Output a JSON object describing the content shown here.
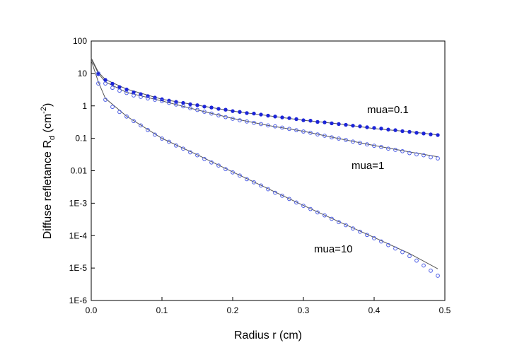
{
  "chart_data": {
    "type": "scatter",
    "xlabel": "Radius r (cm)",
    "ylabel": {
      "text": "Diffuse refletance R",
      "sub": "d",
      "unit_open": " (cm",
      "sup": "-2",
      "unit_close": ")"
    },
    "log_y": true,
    "xlim": [
      0,
      0.5
    ],
    "ylim": [
      1e-06,
      100
    ],
    "xticks": [
      {
        "value": 0,
        "label": "0.0"
      },
      0.1,
      0.2,
      0.3,
      0.4,
      0.5
    ],
    "yticks": [
      {
        "value": 1e-06,
        "label": "1E-6"
      },
      {
        "value": 1e-05,
        "label": "1E-5"
      },
      {
        "value": 0.0001,
        "label": "1E-4"
      },
      {
        "value": 0.001,
        "label": "1E-3"
      },
      0.01,
      0.1,
      1,
      10,
      100
    ],
    "annotations": [
      "mua=0.1",
      "mua=1",
      "mua=10"
    ],
    "x": [
      0.01,
      0.02,
      0.03,
      0.04,
      0.05,
      0.06,
      0.07,
      0.08,
      0.09,
      0.1,
      0.11,
      0.12,
      0.13,
      0.14,
      0.15,
      0.16,
      0.17,
      0.18,
      0.19,
      0.2,
      0.21,
      0.22,
      0.23,
      0.24,
      0.25,
      0.26,
      0.27,
      0.28,
      0.29,
      0.3,
      0.31,
      0.32,
      0.33,
      0.34,
      0.35,
      0.36,
      0.37,
      0.38,
      0.39,
      0.4,
      0.41,
      0.42,
      0.43,
      0.44,
      0.45,
      0.46,
      0.47,
      0.48,
      0.49
    ],
    "series": [
      {
        "style": "filled",
        "color": "#1c24d8",
        "values": [
          9.5,
          6.3,
          4.8,
          3.8,
          3.2,
          2.6,
          2.3,
          2.0,
          1.8,
          1.6,
          1.45,
          1.32,
          1.23,
          1.12,
          1.05,
          0.95,
          0.89,
          0.81,
          0.76,
          0.69,
          0.65,
          0.6,
          0.58,
          0.54,
          0.5,
          0.47,
          0.44,
          0.42,
          0.39,
          0.36,
          0.35,
          0.32,
          0.31,
          0.29,
          0.275,
          0.26,
          0.245,
          0.234,
          0.219,
          0.209,
          0.2,
          0.186,
          0.178,
          0.166,
          0.158,
          0.148,
          0.141,
          0.132,
          0.126
        ]
      },
      {
        "style": "open",
        "color": "#4d5ee6",
        "values": [
          10,
          4.9,
          3.6,
          2.95,
          2.5,
          2.1,
          1.9,
          1.7,
          1.55,
          1.41,
          1.24,
          1.1,
          0.97,
          0.85,
          0.75,
          0.66,
          0.58,
          0.51,
          0.45,
          0.4,
          0.36,
          0.33,
          0.3,
          0.275,
          0.25,
          0.234,
          0.214,
          0.195,
          0.178,
          0.162,
          0.148,
          0.132,
          0.12,
          0.107,
          0.098,
          0.089,
          0.079,
          0.072,
          0.065,
          0.059,
          0.054,
          0.048,
          0.044,
          0.04,
          0.035,
          0.032,
          0.03,
          0.026,
          0.024
        ]
      },
      {
        "style": "open",
        "color": "#4d5ee6",
        "values": [
          4.9,
          1.55,
          0.93,
          0.65,
          0.47,
          0.34,
          0.25,
          0.18,
          0.13,
          0.098,
          0.078,
          0.06,
          0.048,
          0.037,
          0.03,
          0.023,
          0.018,
          0.0145,
          0.0112,
          0.0089,
          0.0071,
          0.0055,
          0.0044,
          0.0035,
          0.0027,
          0.0021,
          0.0017,
          0.00135,
          0.00105,
          0.00083,
          0.00066,
          0.00052,
          0.00042,
          0.00033,
          0.00026,
          0.00021,
          0.000166,
          0.000132,
          0.000105,
          8.3e-05,
          6.6e-05,
          5.1e-05,
          4e-05,
          3.1e-05,
          2.34e-05,
          1.7e-05,
          1.2e-05,
          8.3e-06,
          5.8e-06
        ]
      },
      {
        "style": "line",
        "color": "#555555",
        "x": [
          0,
          0.01,
          0.02,
          0.05,
          0.1,
          0.15,
          0.2,
          0.25,
          0.3,
          0.35,
          0.4,
          0.45,
          0.49
        ],
        "values": [
          30,
          11,
          6.5,
          3.3,
          1.6,
          1.05,
          0.69,
          0.5,
          0.36,
          0.28,
          0.2,
          0.16,
          0.128
        ]
      },
      {
        "style": "line",
        "color": "#555555",
        "x": [
          0,
          0.01,
          0.02,
          0.05,
          0.1,
          0.15,
          0.2,
          0.25,
          0.3,
          0.35,
          0.4,
          0.45,
          0.49
        ],
        "values": [
          28,
          10,
          5.5,
          2.6,
          1.42,
          0.75,
          0.41,
          0.25,
          0.165,
          0.098,
          0.06,
          0.038,
          0.027
        ]
      },
      {
        "style": "line",
        "color": "#555555",
        "x": [
          0,
          0.01,
          0.02,
          0.05,
          0.1,
          0.15,
          0.2,
          0.25,
          0.3,
          0.35,
          0.4,
          0.45,
          0.49
        ],
        "values": [
          25,
          5.5,
          1.7,
          0.48,
          0.1,
          0.031,
          0.0092,
          0.0028,
          0.00085,
          0.00027,
          8.8e-05,
          2.8e-05,
          9.5e-06
        ]
      }
    ]
  }
}
